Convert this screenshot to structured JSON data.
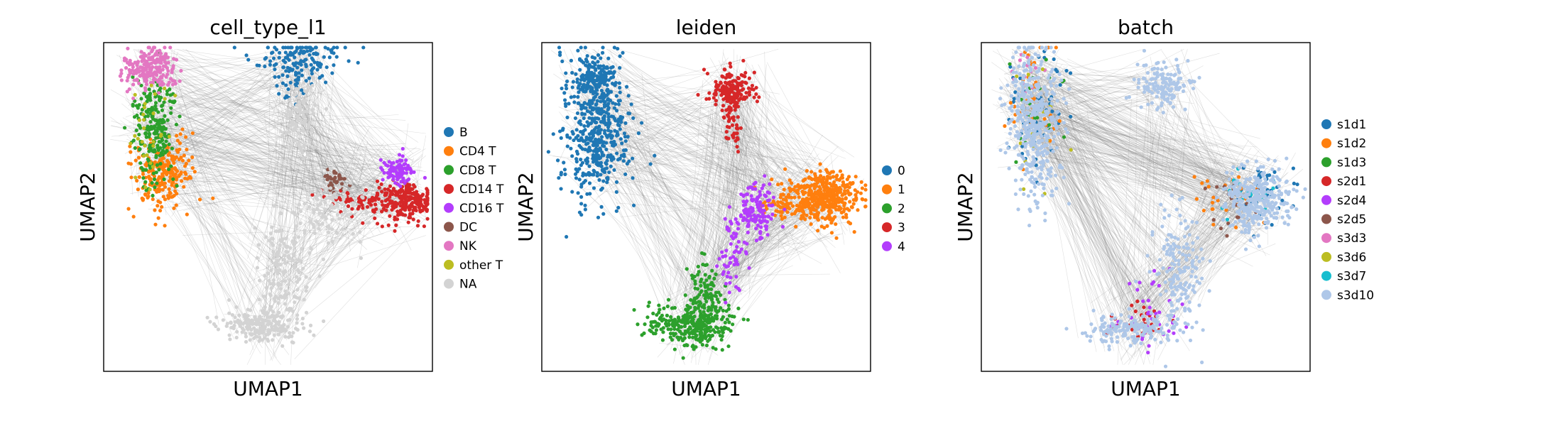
{
  "chart_data": [
    {
      "type": "scatter",
      "title": "cell_type_l1",
      "xlabel": "UMAP1",
      "ylabel": "UMAP2",
      "legend_position": "right",
      "grid": false,
      "series": [
        {
          "name": "B",
          "color": "#1f77b4",
          "regions": [
            {
              "cx": 0.6,
              "cy": 0.95,
              "sx": 0.06,
              "sy": 0.04,
              "n": 140
            },
            {
              "cx": 0.57,
              "cy": 0.86,
              "sx": 0.02,
              "sy": 0.03,
              "n": 20
            }
          ]
        },
        {
          "name": "CD4 T",
          "color": "#ff7f0e",
          "regions": [
            {
              "cx": 0.18,
              "cy": 0.6,
              "sx": 0.045,
              "sy": 0.06,
              "n": 230
            }
          ]
        },
        {
          "name": "CD8 T",
          "color": "#2ca02c",
          "regions": [
            {
              "cx": 0.15,
              "cy": 0.74,
              "sx": 0.03,
              "sy": 0.08,
              "n": 230
            }
          ]
        },
        {
          "name": "CD14 T",
          "color": "#d62728",
          "regions": [
            {
              "cx": 0.92,
              "cy": 0.52,
              "sx": 0.04,
              "sy": 0.03,
              "n": 230
            },
            {
              "cx": 0.79,
              "cy": 0.52,
              "sx": 0.06,
              "sy": 0.02,
              "n": 70
            }
          ]
        },
        {
          "name": "CD16 T",
          "color": "#b33dfc",
          "regions": [
            {
              "cx": 0.9,
              "cy": 0.61,
              "sx": 0.025,
              "sy": 0.025,
              "n": 90
            }
          ]
        },
        {
          "name": "DC",
          "color": "#8c564b",
          "regions": [
            {
              "cx": 0.7,
              "cy": 0.58,
              "sx": 0.02,
              "sy": 0.015,
              "n": 35
            }
          ]
        },
        {
          "name": "NK",
          "color": "#e377c2",
          "regions": [
            {
              "cx": 0.14,
              "cy": 0.92,
              "sx": 0.04,
              "sy": 0.03,
              "n": 220
            }
          ]
        },
        {
          "name": "other T",
          "color": "#bcbd22",
          "regions": [
            {
              "cx": 0.14,
              "cy": 0.72,
              "sx": 0.03,
              "sy": 0.08,
              "n": 30
            }
          ]
        },
        {
          "name": "NA",
          "color": "#d3d3d3",
          "regions": [
            {
              "cx": 0.48,
              "cy": 0.14,
              "sx": 0.06,
              "sy": 0.025,
              "n": 220
            },
            {
              "cx": 0.55,
              "cy": 0.3,
              "sx": 0.04,
              "sy": 0.08,
              "n": 140
            },
            {
              "cx": 0.6,
              "cy": 0.77,
              "sx": 0.025,
              "sy": 0.06,
              "n": 80
            },
            {
              "cx": 0.7,
              "cy": 0.48,
              "sx": 0.05,
              "sy": 0.05,
              "n": 80
            }
          ]
        }
      ]
    },
    {
      "type": "scatter",
      "title": "leiden",
      "xlabel": "UMAP1",
      "ylabel": "UMAP2",
      "legend_position": "right",
      "grid": false,
      "series": [
        {
          "name": "0",
          "color": "#1f77b4",
          "regions": [
            {
              "cx": 0.16,
              "cy": 0.88,
              "sx": 0.04,
              "sy": 0.05,
              "n": 250
            },
            {
              "cx": 0.17,
              "cy": 0.69,
              "sx": 0.05,
              "sy": 0.08,
              "n": 380
            }
          ]
        },
        {
          "name": "1",
          "color": "#ff7f0e",
          "regions": [
            {
              "cx": 0.86,
              "cy": 0.53,
              "sx": 0.05,
              "sy": 0.04,
              "n": 420
            },
            {
              "cx": 0.74,
              "cy": 0.51,
              "sx": 0.04,
              "sy": 0.025,
              "n": 80
            }
          ]
        },
        {
          "name": "2",
          "color": "#2ca02c",
          "regions": [
            {
              "cx": 0.45,
              "cy": 0.14,
              "sx": 0.06,
              "sy": 0.03,
              "n": 300
            },
            {
              "cx": 0.5,
              "cy": 0.23,
              "sx": 0.03,
              "sy": 0.05,
              "n": 120
            }
          ]
        },
        {
          "name": "3",
          "color": "#d62728",
          "regions": [
            {
              "cx": 0.58,
              "cy": 0.86,
              "sx": 0.035,
              "sy": 0.03,
              "n": 160
            },
            {
              "cx": 0.58,
              "cy": 0.77,
              "sx": 0.015,
              "sy": 0.04,
              "n": 50
            }
          ]
        },
        {
          "name": "4",
          "color": "#b33dfc",
          "regions": [
            {
              "cx": 0.65,
              "cy": 0.48,
              "sx": 0.03,
              "sy": 0.04,
              "n": 130
            },
            {
              "cx": 0.58,
              "cy": 0.35,
              "sx": 0.02,
              "sy": 0.06,
              "n": 60
            }
          ]
        }
      ]
    },
    {
      "type": "scatter",
      "title": "batch",
      "xlabel": "UMAP1",
      "ylabel": "UMAP2",
      "legend_position": "right",
      "grid": false,
      "series": [
        {
          "name": "s1d1",
          "color": "#1f77b4",
          "regions": [
            {
              "cx": 0.17,
              "cy": 0.8,
              "sx": 0.05,
              "sy": 0.1,
              "n": 60
            },
            {
              "cx": 0.85,
              "cy": 0.55,
              "sx": 0.05,
              "sy": 0.05,
              "n": 40
            }
          ]
        },
        {
          "name": "s1d2",
          "color": "#ff7f0e",
          "regions": [
            {
              "cx": 0.15,
              "cy": 0.85,
              "sx": 0.04,
              "sy": 0.1,
              "n": 40
            },
            {
              "cx": 0.75,
              "cy": 0.52,
              "sx": 0.05,
              "sy": 0.04,
              "n": 25
            }
          ]
        },
        {
          "name": "s1d3",
          "color": "#2ca02c",
          "regions": [
            {
              "cx": 0.16,
              "cy": 0.8,
              "sx": 0.04,
              "sy": 0.08,
              "n": 25
            }
          ]
        },
        {
          "name": "s2d1",
          "color": "#d62728",
          "regions": [
            {
              "cx": 0.48,
              "cy": 0.15,
              "sx": 0.05,
              "sy": 0.03,
              "n": 30
            }
          ]
        },
        {
          "name": "s2d4",
          "color": "#b33dfc",
          "regions": [
            {
              "cx": 0.5,
              "cy": 0.18,
              "sx": 0.05,
              "sy": 0.05,
              "n": 40
            }
          ]
        },
        {
          "name": "s2d5",
          "color": "#8c564b",
          "regions": [
            {
              "cx": 0.76,
              "cy": 0.52,
              "sx": 0.05,
              "sy": 0.04,
              "n": 20
            }
          ]
        },
        {
          "name": "s3d3",
          "color": "#e377c2",
          "regions": [
            {
              "cx": 0.14,
              "cy": 0.9,
              "sx": 0.03,
              "sy": 0.03,
              "n": 15
            }
          ]
        },
        {
          "name": "s3d6",
          "color": "#bcbd22",
          "regions": [
            {
              "cx": 0.16,
              "cy": 0.75,
              "sx": 0.04,
              "sy": 0.1,
              "n": 15
            }
          ]
        },
        {
          "name": "s3d7",
          "color": "#17becf",
          "regions": [
            {
              "cx": 0.8,
              "cy": 0.55,
              "sx": 0.05,
              "sy": 0.04,
              "n": 20
            }
          ]
        },
        {
          "name": "s3d10",
          "color": "#aec7e8",
          "regions": [
            {
              "cx": 0.16,
              "cy": 0.75,
              "sx": 0.04,
              "sy": 0.12,
              "n": 420
            },
            {
              "cx": 0.55,
              "cy": 0.87,
              "sx": 0.04,
              "sy": 0.04,
              "n": 140
            },
            {
              "cx": 0.84,
              "cy": 0.52,
              "sx": 0.05,
              "sy": 0.05,
              "n": 320
            },
            {
              "cx": 0.6,
              "cy": 0.3,
              "sx": 0.04,
              "sy": 0.1,
              "n": 180
            },
            {
              "cx": 0.45,
              "cy": 0.13,
              "sx": 0.06,
              "sy": 0.025,
              "n": 160
            }
          ]
        }
      ]
    }
  ]
}
